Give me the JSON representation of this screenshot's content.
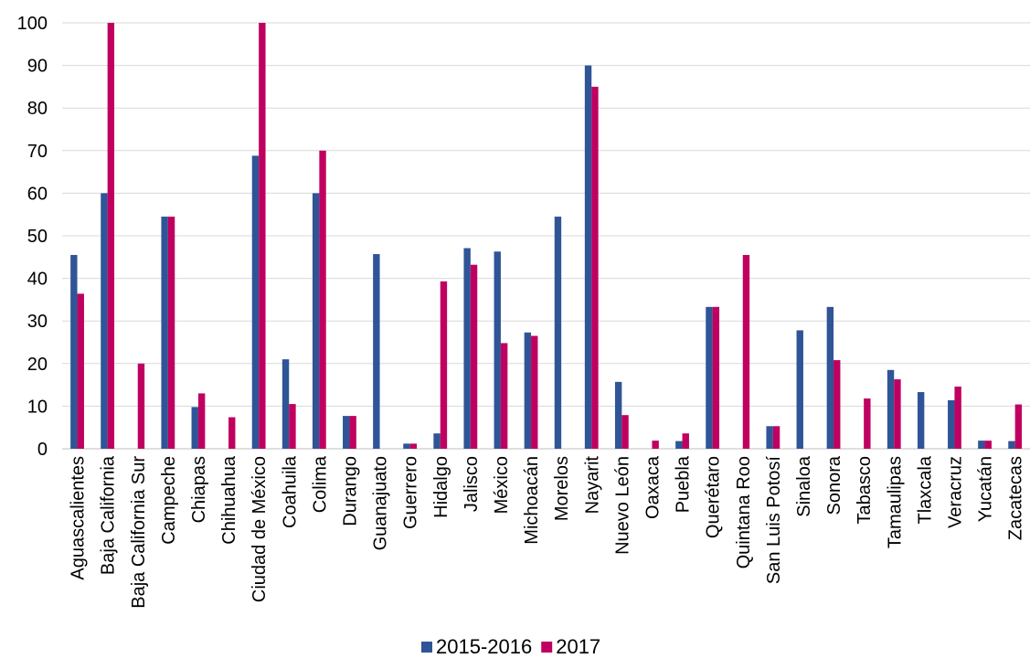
{
  "chart_data": {
    "type": "bar",
    "categories": [
      "Aguascalientes",
      "Baja California",
      "Baja California Sur",
      "Campeche",
      "Chiapas",
      "Chihuahua",
      "Ciudad de México",
      "Coahuila",
      "Colima",
      "Durango",
      "Guanajuato",
      "Guerrero",
      "Hidalgo",
      "Jalisco",
      "México",
      "Michoacán",
      "Morelos",
      "Nayarit",
      "Nuevo León",
      "Oaxaca",
      "Puebla",
      "Querétaro",
      "Quintana Roo",
      "San Luis Potosí",
      "Sinaloa",
      "Sonora",
      "Tabasco",
      "Tamaulipas",
      "Tlaxcala",
      "Veracruz",
      "Yucatán",
      "Zacatecas"
    ],
    "series": [
      {
        "name": "2015-2016",
        "color": "#2f5597",
        "values": [
          45.5,
          60,
          0,
          54.5,
          9.8,
          0,
          68.8,
          21,
          60,
          7.7,
          45.7,
          1.2,
          3.6,
          47.1,
          46.3,
          27.3,
          54.5,
          90,
          15.7,
          0,
          1.8,
          33.3,
          0,
          5.3,
          27.8,
          33.3,
          0,
          18.5,
          13.3,
          11.4,
          1.9,
          1.8
        ]
      },
      {
        "name": "2017",
        "color": "#c00060",
        "values": [
          36.4,
          100,
          20,
          54.5,
          13,
          7.4,
          100,
          10.5,
          70,
          7.7,
          0,
          1.2,
          39.3,
          43.2,
          24.8,
          26.5,
          0,
          85,
          7.9,
          1.9,
          3.6,
          33.3,
          45.5,
          5.3,
          0,
          20.8,
          11.8,
          16.3,
          0,
          14.6,
          1.9,
          10.4
        ]
      }
    ],
    "title": "",
    "xlabel": "",
    "ylabel": "",
    "ylim": [
      0,
      100
    ],
    "yticks": [
      "0",
      "10",
      "20",
      "30",
      "40",
      "50",
      "60",
      "70",
      "80",
      "90",
      "100"
    ],
    "grid": true,
    "legend_position": "bottom"
  }
}
